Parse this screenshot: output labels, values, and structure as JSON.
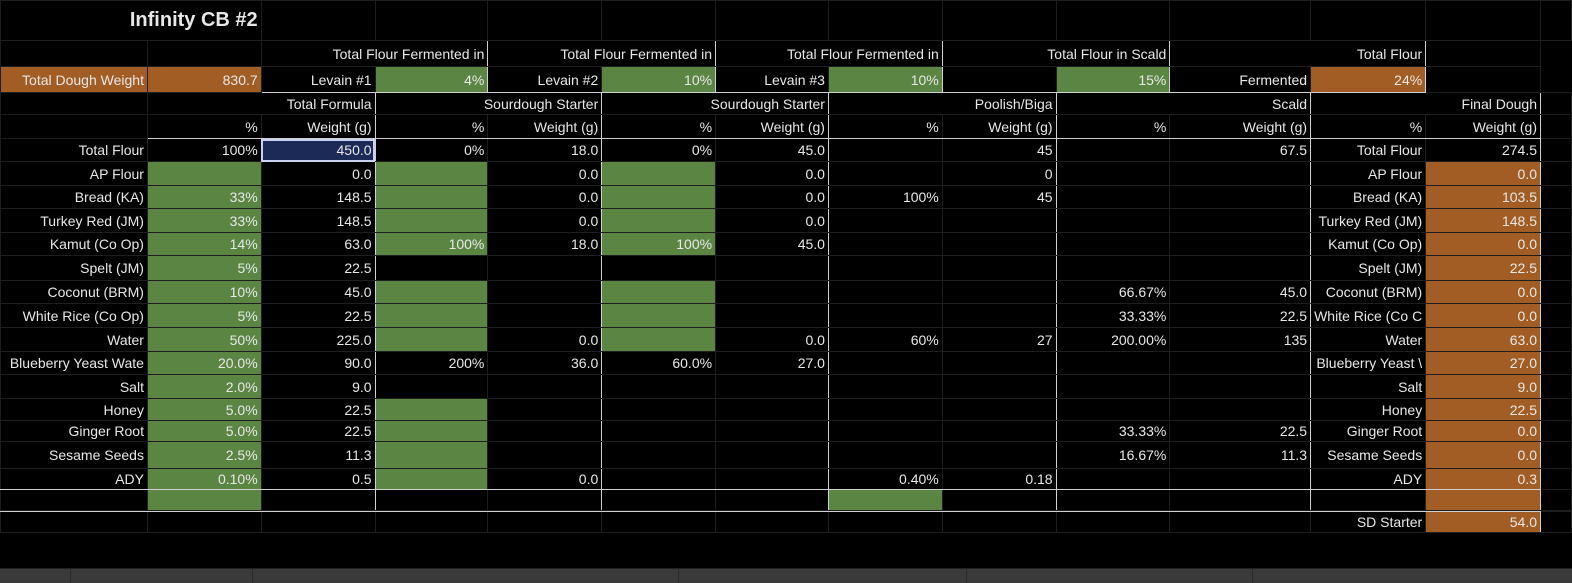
{
  "sheet": {
    "title": "Infinity CB #2",
    "dough_weight_label": "Total Dough Weight",
    "dough_weight_value": "830.7",
    "banner1": {
      "lead": "Total Flour Fermented in",
      "sub": "Levain #1",
      "pct": "4%"
    },
    "banner2": {
      "lead": "Total Flour Fermented in",
      "sub": "Levain #2",
      "pct": "10%"
    },
    "banner3": {
      "lead": "Total Flour Fermented in",
      "sub": "Levain #3",
      "pct": "10%"
    },
    "banner4": {
      "lead": "Total Flour in Scald",
      "pct": "15%"
    },
    "banner5": {
      "lead": "Total Flour",
      "sub": "Fermented",
      "pct": "24%"
    },
    "sections": [
      "Total Formula",
      "Sourdough Starter",
      "Sourdough Starter",
      "Poolish/Biga",
      "Scald",
      "Final Dough"
    ],
    "subheads": {
      "pct": "%",
      "weight": "Weight (g)"
    },
    "rows": [
      {
        "label": "Total Flour",
        "tf_pct": "100%",
        "tf_w": "450.0",
        "l1_pct": "0%",
        "l1_w": "18.0",
        "l2_pct": "0%",
        "l2_w": "45.0",
        "p_pct": "",
        "p_w": "45",
        "s_pct": "",
        "s_w": "67.5",
        "fd_label": "Total Flour",
        "fd_w": "274.5"
      },
      {
        "label": "AP Flour",
        "tf_pct": "",
        "tf_w": "0.0",
        "l1_pct": "",
        "l1_w": "0.0",
        "l2_pct": "",
        "l2_w": "0.0",
        "p_pct": "",
        "p_w": "0",
        "s_pct": "",
        "s_w": "",
        "fd_label": "AP Flour",
        "fd_w": "0.0"
      },
      {
        "label": "Bread (KA)",
        "tf_pct": "33%",
        "tf_w": "148.5",
        "l1_pct": "",
        "l1_w": "0.0",
        "l2_pct": "",
        "l2_w": "0.0",
        "p_pct": "100%",
        "p_w": "45",
        "s_pct": "",
        "s_w": "",
        "fd_label": "Bread (KA)",
        "fd_w": "103.5"
      },
      {
        "label": "Turkey Red (JM)",
        "tf_pct": "33%",
        "tf_w": "148.5",
        "l1_pct": "",
        "l1_w": "0.0",
        "l2_pct": "",
        "l2_w": "0.0",
        "p_pct": "",
        "p_w": "",
        "s_pct": "",
        "s_w": "",
        "fd_label": "Turkey Red (JM)",
        "fd_w": "148.5"
      },
      {
        "label": "Kamut (Co Op)",
        "tf_pct": "14%",
        "tf_w": "63.0",
        "l1_pct": "100%",
        "l1_w": "18.0",
        "l2_pct": "100%",
        "l2_w": "45.0",
        "p_pct": "",
        "p_w": "",
        "s_pct": "",
        "s_w": "",
        "fd_label": "Kamut (Co Op)",
        "fd_w": "0.0"
      },
      {
        "label": "Spelt (JM)",
        "tf_pct": "5%",
        "tf_w": "22.5",
        "l1_pct": "",
        "l1_w": "",
        "l2_pct": "",
        "l2_w": "",
        "p_pct": "",
        "p_w": "",
        "s_pct": "",
        "s_w": "",
        "fd_label": "Spelt (JM)",
        "fd_w": "22.5"
      },
      {
        "label": "Coconut (BRM)",
        "tf_pct": "10%",
        "tf_w": "45.0",
        "l1_pct": "",
        "l1_w": "",
        "l2_pct": "",
        "l2_w": "",
        "p_pct": "",
        "p_w": "",
        "s_pct": "66.67%",
        "s_w": "45.0",
        "fd_label": "Coconut (BRM)",
        "fd_w": "0.0"
      },
      {
        "label": "White Rice (Co Op)",
        "tf_pct": "5%",
        "tf_w": "22.5",
        "l1_pct": "",
        "l1_w": "",
        "l2_pct": "",
        "l2_w": "",
        "p_pct": "",
        "p_w": "",
        "s_pct": "33.33%",
        "s_w": "22.5",
        "fd_label": "White Rice (Co C",
        "fd_w": "0.0"
      },
      {
        "label": "Water",
        "tf_pct": "50%",
        "tf_w": "225.0",
        "l1_pct": "",
        "l1_w": "0.0",
        "l2_pct": "",
        "l2_w": "0.0",
        "p_pct": "60%",
        "p_w": "27",
        "s_pct": "200.00%",
        "s_w": "135",
        "fd_label": "Water",
        "fd_w": "63.0"
      },
      {
        "label": "Blueberry Yeast Wate",
        "tf_pct": "20.0%",
        "tf_w": "90.0",
        "l1_pct": "200%",
        "l1_w": "36.0",
        "l2_pct": "60.0%",
        "l2_w": "27.0",
        "p_pct": "",
        "p_w": "",
        "s_pct": "",
        "s_w": "",
        "fd_label": "Blueberry Yeast \\",
        "fd_w": "27.0"
      },
      {
        "label": "Salt",
        "tf_pct": "2.0%",
        "tf_w": "9.0",
        "l1_pct": "",
        "l1_w": "",
        "l2_pct": "",
        "l2_w": "",
        "p_pct": "",
        "p_w": "",
        "s_pct": "",
        "s_w": "",
        "fd_label": "Salt",
        "fd_w": "9.0"
      },
      {
        "label": "Honey",
        "tf_pct": "5.0%",
        "tf_w": "22.5",
        "l1_pct": "",
        "l1_w": "",
        "l2_pct": "",
        "l2_w": "",
        "p_pct": "",
        "p_w": "",
        "s_pct": "",
        "s_w": "",
        "fd_label": "Honey",
        "fd_w": "22.5"
      },
      {
        "label": "Ginger Root",
        "tf_pct": "5.0%",
        "tf_w": "22.5",
        "l1_pct": "",
        "l1_w": "",
        "l2_pct": "",
        "l2_w": "",
        "p_pct": "",
        "p_w": "",
        "s_pct": "33.33%",
        "s_w": "22.5",
        "fd_label": "Ginger Root",
        "fd_w": "0.0"
      },
      {
        "label": "Sesame Seeds",
        "tf_pct": "2.5%",
        "tf_w": "11.3",
        "l1_pct": "",
        "l1_w": "",
        "l2_pct": "",
        "l2_w": "",
        "p_pct": "",
        "p_w": "",
        "s_pct": "16.67%",
        "s_w": "11.3",
        "fd_label": "Sesame Seeds",
        "fd_w": "0.0"
      },
      {
        "label": "ADY",
        "tf_pct": "0.10%",
        "tf_w": "0.5",
        "l1_pct": "",
        "l1_w": "0.0",
        "l2_pct": "",
        "l2_w": "",
        "p_pct": "0.40%",
        "p_w": "0.18",
        "s_pct": "",
        "s_w": "",
        "fd_label": "ADY",
        "fd_w": "0.3"
      }
    ],
    "footer": {
      "label": "SD Starter",
      "value": "54.0"
    },
    "colors": {
      "green": "#5b8543",
      "orange": "#a15d23",
      "selected": "#1b2a57"
    }
  }
}
